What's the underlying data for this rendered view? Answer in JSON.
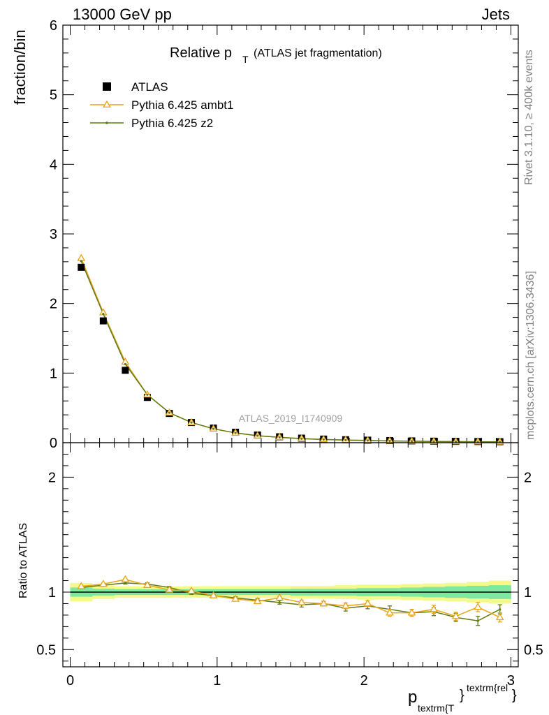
{
  "header": {
    "left": "13000 GeV pp",
    "right": "Jets"
  },
  "title": {
    "main": "Relative p",
    "sub": "T",
    "rest": "(ATLAS jet fragmentation)"
  },
  "side": {
    "rivet": "Rivet 3.1.10, ≥ 400k events",
    "mcplots": "mcplots.cern.ch [arXiv:1306.3436]"
  },
  "watermark": "ATLAS_2019_I1740909",
  "xlabel": {
    "main": "p",
    "sub": "textrm{T",
    "brace": "}",
    "sup": "textrm{rel",
    "brace2": "}"
  },
  "colors": {
    "atlas": "#000000",
    "ambt1": "#e8a317",
    "z2": "#5f7a10",
    "band_inner": "#7ee8a0",
    "band_outer": "#f5f88a"
  },
  "chart_data": [
    {
      "type": "line",
      "ylabel": "fraction/bin",
      "ylim": [
        0,
        6
      ],
      "yticks": [
        "0",
        "1",
        "2",
        "3",
        "4",
        "5",
        "6"
      ],
      "xlim": [
        -0.05,
        3.05
      ],
      "x": [
        0.075,
        0.225,
        0.375,
        0.525,
        0.675,
        0.825,
        0.975,
        1.125,
        1.275,
        1.425,
        1.575,
        1.725,
        1.875,
        2.025,
        2.175,
        2.325,
        2.475,
        2.625,
        2.775,
        2.925
      ],
      "legend": [
        "ATLAS",
        "Pythia 6.425 ambt1",
        "Pythia 6.425 z2"
      ],
      "legend_position": "top-left",
      "series": [
        {
          "name": "ATLAS",
          "style": "square",
          "values": [
            2.52,
            1.75,
            1.04,
            0.65,
            0.42,
            0.29,
            0.21,
            0.15,
            0.11,
            0.085,
            0.065,
            0.052,
            0.043,
            0.036,
            0.03,
            0.026,
            0.022,
            0.019,
            0.017,
            0.015
          ]
        },
        {
          "name": "Pythia 6.425 ambt1",
          "style": "triangle",
          "values": [
            2.65,
            1.87,
            1.16,
            0.69,
            0.43,
            0.29,
            0.2,
            0.14,
            0.1,
            0.078,
            0.059,
            0.047,
            0.038,
            0.032,
            0.025,
            0.021,
            0.018,
            0.015,
            0.014,
            0.012
          ]
        },
        {
          "name": "Pythia 6.425 z2",
          "style": "dot",
          "values": [
            2.61,
            1.85,
            1.13,
            0.69,
            0.43,
            0.29,
            0.2,
            0.14,
            0.1,
            0.077,
            0.058,
            0.046,
            0.037,
            0.031,
            0.025,
            0.021,
            0.018,
            0.015,
            0.013,
            0.012
          ]
        }
      ]
    },
    {
      "type": "line",
      "ylabel": "Ratio to ATLAS",
      "ylim": [
        0.35,
        2.3
      ],
      "yticks": [
        "0.5",
        "1",
        "2"
      ],
      "xlim": [
        -0.05,
        3.05
      ],
      "xticks": [
        "0",
        "1",
        "2",
        "3"
      ],
      "x": [
        0.075,
        0.225,
        0.375,
        0.525,
        0.675,
        0.825,
        0.975,
        1.125,
        1.275,
        1.425,
        1.575,
        1.725,
        1.875,
        2.025,
        2.175,
        2.325,
        2.475,
        2.625,
        2.775,
        2.925
      ],
      "band": {
        "inner": [
          0.04,
          0.03,
          0.025,
          0.025,
          0.025,
          0.025,
          0.025,
          0.025,
          0.025,
          0.025,
          0.03,
          0.03,
          0.03,
          0.035,
          0.035,
          0.04,
          0.045,
          0.05,
          0.055,
          0.06
        ],
        "outer": [
          0.08,
          0.06,
          0.05,
          0.05,
          0.05,
          0.05,
          0.05,
          0.05,
          0.05,
          0.05,
          0.055,
          0.055,
          0.06,
          0.065,
          0.065,
          0.07,
          0.075,
          0.08,
          0.09,
          0.1
        ]
      },
      "series": [
        {
          "name": "Pythia 6.425 ambt1",
          "style": "triangle",
          "values": [
            1.05,
            1.07,
            1.11,
            1.06,
            1.02,
            1.01,
            0.97,
            0.94,
            0.92,
            0.95,
            0.91,
            0.9,
            0.88,
            0.9,
            0.82,
            0.82,
            0.85,
            0.79,
            0.87,
            0.78
          ],
          "errors": [
            0.01,
            0.01,
            0.01,
            0.01,
            0.01,
            0.01,
            0.01,
            0.01,
            0.015,
            0.015,
            0.02,
            0.02,
            0.025,
            0.025,
            0.03,
            0.03,
            0.035,
            0.035,
            0.04,
            0.04
          ]
        },
        {
          "name": "Pythia 6.425 z2",
          "style": "dot",
          "values": [
            1.04,
            1.06,
            1.08,
            1.07,
            1.04,
            0.99,
            0.97,
            0.95,
            0.93,
            0.91,
            0.89,
            0.9,
            0.86,
            0.88,
            0.85,
            0.82,
            0.83,
            0.78,
            0.75,
            0.85
          ],
          "errors": [
            0.01,
            0.01,
            0.01,
            0.01,
            0.01,
            0.01,
            0.01,
            0.01,
            0.015,
            0.015,
            0.02,
            0.02,
            0.025,
            0.025,
            0.03,
            0.03,
            0.035,
            0.035,
            0.04,
            0.04
          ]
        }
      ]
    }
  ]
}
